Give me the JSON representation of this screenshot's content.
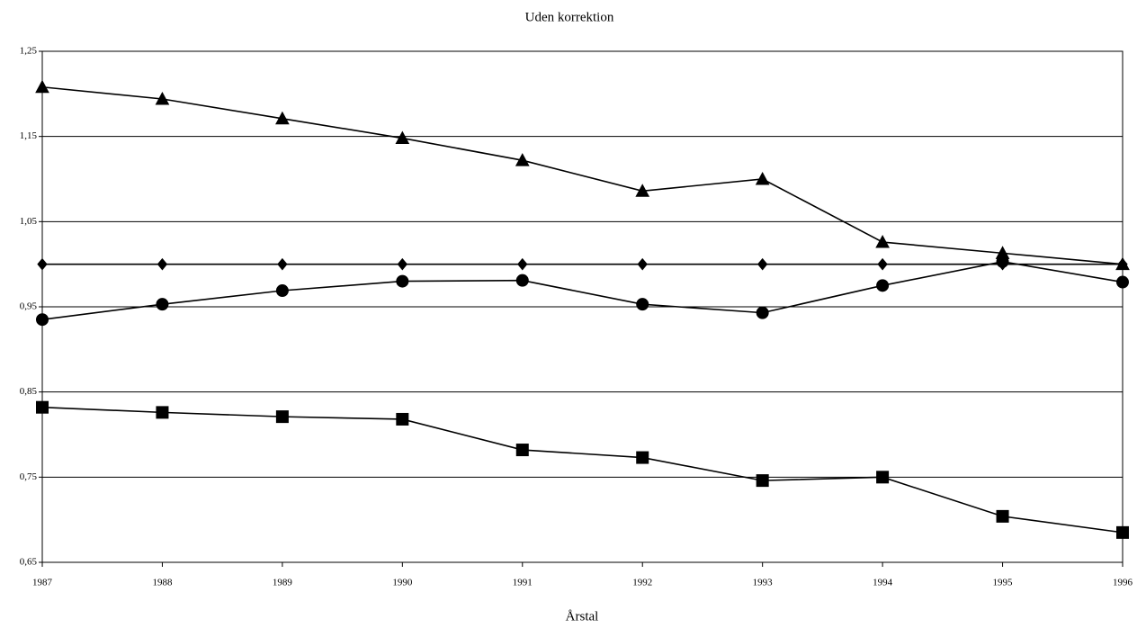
{
  "chart_data": {
    "type": "line",
    "title": "Uden korrektion",
    "x_label": "Årstal",
    "x": [
      1987,
      1988,
      1989,
      1990,
      1991,
      1992,
      1993,
      1994,
      1995,
      1996
    ],
    "xlim": [
      1987,
      1996
    ],
    "xticks": [
      1987,
      1988,
      1989,
      1990,
      1991,
      1992,
      1993,
      1994,
      1995,
      1996
    ],
    "ylim": [
      0.65,
      1.25
    ],
    "yticks": [
      {
        "value": 0.65,
        "label": "0,65"
      },
      {
        "value": 0.75,
        "label": "0,75"
      },
      {
        "value": 0.85,
        "label": "0,85"
      },
      {
        "value": 0.95,
        "label": "0,95"
      },
      {
        "value": 1.05,
        "label": "1,05"
      },
      {
        "value": 1.15,
        "label": "1,15"
      },
      {
        "value": 1.25,
        "label": "1,25"
      }
    ],
    "grid": true,
    "series": [
      {
        "color": "#000000",
        "marker": "diamond",
        "values": [
          1.0,
          1.0,
          1.0,
          1.0,
          1.0,
          1.0,
          1.0,
          1.0,
          1.0,
          1.0
        ]
      },
      {
        "color": "#000000",
        "marker": "triangle",
        "values": [
          1.208,
          1.194,
          1.171,
          1.148,
          1.122,
          1.086,
          1.1,
          1.026,
          1.013,
          1.0
        ]
      },
      {
        "color": "#000000",
        "marker": "circle",
        "values": [
          0.935,
          0.953,
          0.969,
          0.98,
          0.981,
          0.953,
          0.943,
          0.975,
          1.003,
          0.979
        ]
      },
      {
        "color": "#000000",
        "marker": "square",
        "values": [
          0.832,
          0.826,
          0.821,
          0.818,
          0.782,
          0.773,
          0.746,
          0.75,
          0.704,
          0.685
        ]
      }
    ]
  }
}
